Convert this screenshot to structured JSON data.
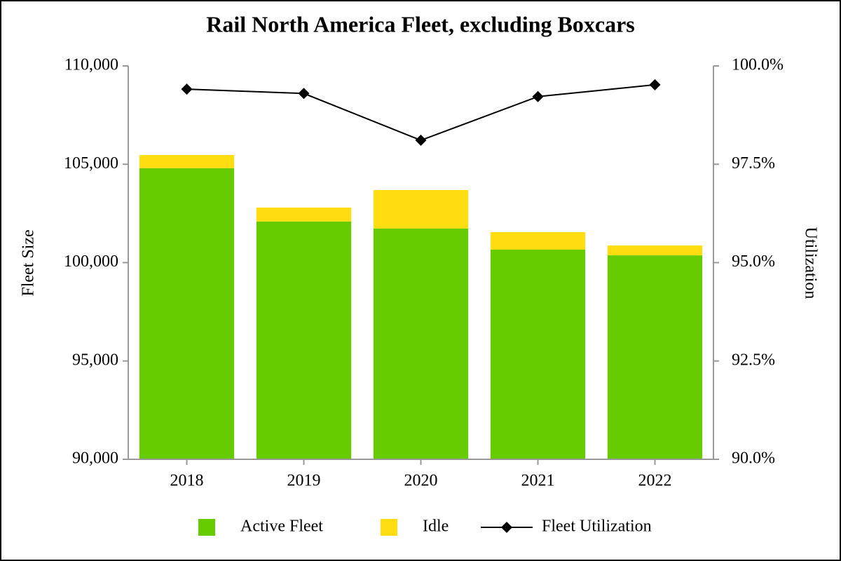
{
  "chart_data": {
    "type": "bar",
    "title": "Rail North America Fleet, excluding Boxcars",
    "categories": [
      "2018",
      "2019",
      "2020",
      "2021",
      "2022"
    ],
    "series": [
      {
        "name": "Active Fleet",
        "color": "#66cc00",
        "values": [
          104800,
          102090,
          101730,
          100660,
          100370
        ]
      },
      {
        "name": "Idle",
        "color": "#ffdd11",
        "values": [
          670,
          710,
          1960,
          890,
          500
        ]
      },
      {
        "name": "Fleet Utilization",
        "color": "#000000",
        "type": "line",
        "axis": "y2",
        "values": [
          99.41,
          99.3,
          98.11,
          99.22,
          99.52
        ]
      }
    ],
    "stacked": true,
    "ylabel": "Fleet Size",
    "y2label": "Utilization",
    "ylim": [
      90000,
      110000
    ],
    "yticks": [
      {
        "value": 90000,
        "label": "90,000"
      },
      {
        "value": 95000,
        "label": "95,000"
      },
      {
        "value": 100000,
        "label": "100,000"
      },
      {
        "value": 105000,
        "label": "105,000"
      },
      {
        "value": 110000,
        "label": "110,000"
      }
    ],
    "y2lim": [
      90,
      100
    ],
    "y2ticks": [
      {
        "value": 90,
        "label": "90.0%"
      },
      {
        "value": 92.5,
        "label": "92.5%"
      },
      {
        "value": 95,
        "label": "95.0%"
      },
      {
        "value": 97.5,
        "label": "97.5%"
      },
      {
        "value": 100,
        "label": "100.0%"
      }
    ],
    "legend": "bottom"
  }
}
